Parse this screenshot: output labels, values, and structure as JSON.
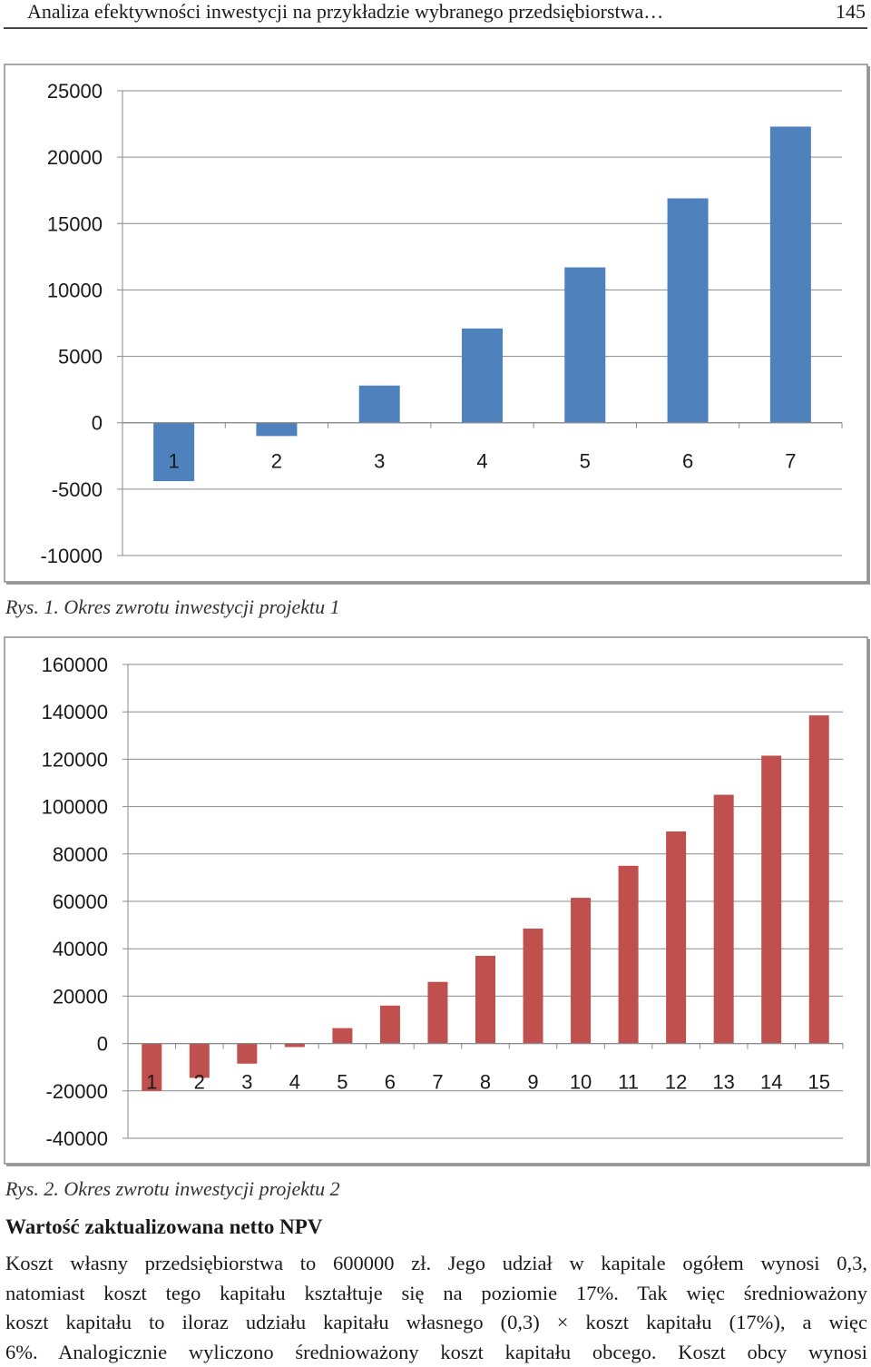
{
  "header": {
    "running_title": "Analiza efektywności inwestycji na przykładzie wybranego przedsiębiorstwa…",
    "page_number": "145"
  },
  "figure1": {
    "caption": "Rys. 1. Okres zwrotu inwestycji projektu 1"
  },
  "figure2": {
    "caption": "Rys. 2. Okres zwrotu inwestycji projektu 2"
  },
  "section": {
    "heading": "Wartość zaktualizowana netto NPV",
    "lines": [
      "Koszt własny przedsiębiorstwa to 600000 zł. Jego udział w kapitale ogółem wynosi 0,3,",
      "natomiast koszt tego kapitału kształtuje się na poziomie 17%. Tak więc średnioważony",
      "koszt kapitału to iloraz udziału kapitału własnego (0,3) × koszt kapitału (17%), a więc",
      "6%. Analogicznie wyliczono średnioważony koszt kapitału obcego. Koszt obcy wynosi"
    ]
  },
  "chart_data": [
    {
      "type": "bar",
      "categories": [
        "1",
        "2",
        "3",
        "4",
        "5",
        "6",
        "7"
      ],
      "values": [
        -4400,
        -1000,
        2800,
        7100,
        11700,
        16900,
        22300
      ],
      "ylim": [
        -10000,
        25000
      ],
      "yticks": [
        "25000",
        "20000",
        "15000",
        "10000",
        "5000",
        "0",
        "-5000",
        "-10000"
      ],
      "grid": true,
      "color": "#4f81bd"
    },
    {
      "type": "bar",
      "categories": [
        "1",
        "2",
        "3",
        "4",
        "5",
        "6",
        "7",
        "8",
        "9",
        "10",
        "11",
        "12",
        "13",
        "14",
        "15"
      ],
      "values": [
        -20000,
        -14500,
        -8500,
        -1500,
        6500,
        16000,
        26000,
        37000,
        48500,
        61500,
        75000,
        89500,
        105000,
        121500,
        138500
      ],
      "ylim": [
        -40000,
        160000
      ],
      "yticks": [
        "160000",
        "140000",
        "120000",
        "100000",
        "80000",
        "60000",
        "40000",
        "20000",
        "0",
        "-20000",
        "-40000"
      ],
      "grid": true,
      "color": "#c0504d"
    }
  ]
}
